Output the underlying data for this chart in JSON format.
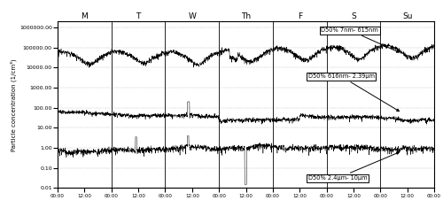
{
  "ylabel": "Particle concentration (1/cm³)",
  "ylim_log": [
    0.01,
    2000000.0
  ],
  "yticks": [
    0.01,
    0.1,
    1.0,
    10.0,
    100.0,
    1000.0,
    10000.0,
    100000.0,
    1000000.0
  ],
  "ytick_labels": [
    "0.01",
    "0.10",
    "1.00",
    "10.00",
    "100.00",
    "1000.00",
    "10000.00",
    "100000.00",
    "1000000.00"
  ],
  "day_labels": [
    "M",
    "T",
    "W",
    "Th",
    "F",
    "S",
    "Su"
  ],
  "xtick_labels": [
    "00:00",
    "12:00",
    "00:00",
    "12:00",
    "00:00",
    "12:00",
    "00:00",
    "12:00",
    "00:00",
    "12:00",
    "00:00",
    "12:00",
    "00:00",
    "12:00",
    "00:00",
    "12:00"
  ],
  "annotation1": "D50% 7nm- 615nm",
  "annotation2": "D50% 616nm- 2.39μm",
  "annotation3": "D50% 2.4μm- 10μm",
  "line_color": "black",
  "bg_color": "white",
  "n_points": 2016,
  "series1_base": 40000,
  "series2_base": 60,
  "series3_base": 0.7
}
